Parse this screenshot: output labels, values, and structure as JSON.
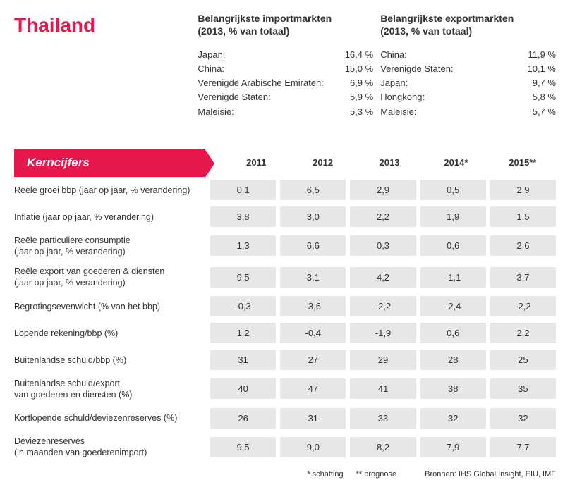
{
  "title": "Thailand",
  "title_color": "#e6174a",
  "imports": {
    "heading": "Belangrijkste importmarkten",
    "sub": "(2013, % van totaal)",
    "rows": [
      {
        "country": "Japan:",
        "value": "16,4 %"
      },
      {
        "country": "China:",
        "value": "15,0 %"
      },
      {
        "country": "Verenigde Arabische Emiraten:",
        "value": "6,9 %"
      },
      {
        "country": "Verenigde Staten:",
        "value": "5,9 %"
      },
      {
        "country": "Maleisië:",
        "value": "5,3 %"
      }
    ]
  },
  "exports": {
    "heading": "Belangrijkste exportmarkten",
    "sub": "(2013, % van totaal)",
    "rows": [
      {
        "country": "China:",
        "value": "11,9 %"
      },
      {
        "country": "Verenigde Staten:",
        "value": "10,1 %"
      },
      {
        "country": "Japan:",
        "value": "9,7 %"
      },
      {
        "country": "Hongkong:",
        "value": "5,8 %"
      },
      {
        "country": "Maleisië:",
        "value": "5,7 %"
      }
    ]
  },
  "table": {
    "badge_label": "Kerncijfers",
    "badge_bg": "#e6174a",
    "cell_bg": "#e7e7e7",
    "years": [
      "2011",
      "2012",
      "2013",
      "2014*",
      "2015**"
    ],
    "rows": [
      {
        "label": "Reële groei bbp (jaar op jaar, % verandering)",
        "values": [
          "0,1",
          "6,5",
          "2,9",
          "0,5",
          "2,9"
        ]
      },
      {
        "label": "Inflatie (jaar op jaar, % verandering)",
        "values": [
          "3,8",
          "3,0",
          "2,2",
          "1,9",
          "1,5"
        ]
      },
      {
        "label": "Reële particuliere consumptie\n(jaar op jaar, % verandering)",
        "values": [
          "1,3",
          "6,6",
          "0,3",
          "0,6",
          "2,6"
        ]
      },
      {
        "label": "Reële export van goederen & diensten\n(jaar op jaar, % verandering)",
        "values": [
          "9,5",
          "3,1",
          "4,2",
          "-1,1",
          "3,7"
        ]
      },
      {
        "label": "Begrotingsevenwicht (% van het bbp)",
        "values": [
          "-0,3",
          "-3,6",
          "-2,2",
          "-2,4",
          "-2,2"
        ]
      },
      {
        "label": "Lopende rekening/bbp (%)",
        "values": [
          "1,2",
          "-0,4",
          "-1,9",
          "0,6",
          "2,2"
        ]
      },
      {
        "label": "Buitenlandse schuld/bbp (%)",
        "values": [
          "31",
          "27",
          "29",
          "28",
          "25"
        ]
      },
      {
        "label": "Buitenlandse schuld/export\nvan goederen en diensten (%)",
        "values": [
          "40",
          "47",
          "41",
          "38",
          "35"
        ]
      },
      {
        "label": "Kortlopende schuld/deviezenreserves (%)",
        "values": [
          "26",
          "31",
          "33",
          "32",
          "32"
        ]
      },
      {
        "label": "Deviezenreserves\n(in maanden van goederenimport)",
        "values": [
          "9,5",
          "9,0",
          "8,2",
          "7,9",
          "7,7"
        ]
      }
    ]
  },
  "footer": {
    "note_estimate": "* schatting",
    "note_forecast": "** prognose",
    "sources": "Bronnen: IHS Global Insight, EIU, IMF"
  }
}
